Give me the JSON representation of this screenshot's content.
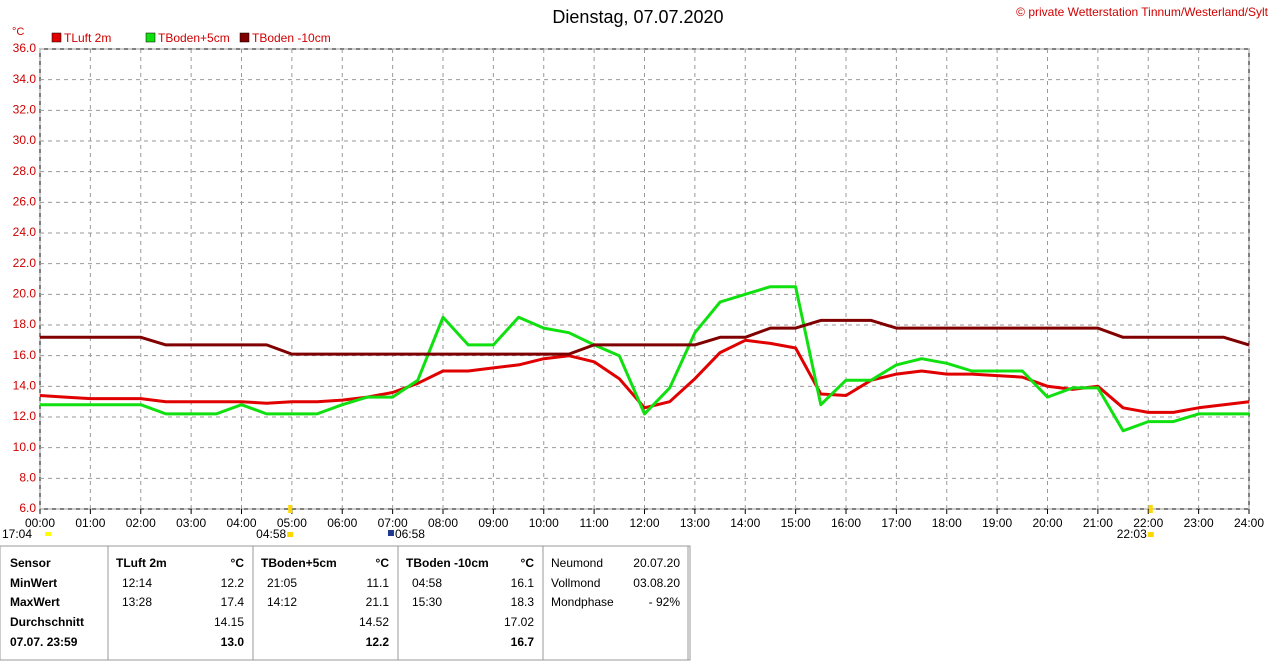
{
  "chart_data": {
    "type": "line",
    "title": "Dienstag, 07.07.2020",
    "copyright": "© private Wetterstation Tinnum/Westerland/Sylt",
    "y_unit": "°C",
    "grid": true,
    "x": [
      0,
      0.5,
      1,
      1.5,
      2,
      2.5,
      3,
      3.5,
      4,
      4.5,
      5,
      5.5,
      6,
      6.5,
      7,
      7.5,
      8,
      8.5,
      9,
      9.5,
      10,
      10.5,
      11,
      11.5,
      12,
      12.5,
      13,
      13.5,
      14,
      14.5,
      15,
      15.5,
      16,
      16.5,
      17,
      17.5,
      18,
      18.5,
      19,
      19.5,
      20,
      20.5,
      21,
      21.5,
      22,
      22.5,
      23,
      23.5,
      24
    ],
    "xlim": [
      0,
      24
    ],
    "xticks": [
      {
        "value": 0,
        "label": "00:00"
      },
      {
        "value": 1,
        "label": "01:00"
      },
      {
        "value": 2,
        "label": "02:00"
      },
      {
        "value": 3,
        "label": "03:00"
      },
      {
        "value": 4,
        "label": "04:00"
      },
      {
        "value": 5,
        "label": "05:00"
      },
      {
        "value": 6,
        "label": "06:00"
      },
      {
        "value": 7,
        "label": "07:00"
      },
      {
        "value": 8,
        "label": "08:00"
      },
      {
        "value": 9,
        "label": "09:00"
      },
      {
        "value": 10,
        "label": "10:00"
      },
      {
        "value": 11,
        "label": "11:00"
      },
      {
        "value": 12,
        "label": "12:00"
      },
      {
        "value": 13,
        "label": "13:00"
      },
      {
        "value": 14,
        "label": "14:00"
      },
      {
        "value": 15,
        "label": "15:00"
      },
      {
        "value": 16,
        "label": "16:00"
      },
      {
        "value": 17,
        "label": "17:00"
      },
      {
        "value": 18,
        "label": "18:00"
      },
      {
        "value": 19,
        "label": "19:00"
      },
      {
        "value": 20,
        "label": "20:00"
      },
      {
        "value": 21,
        "label": "21:00"
      },
      {
        "value": 22,
        "label": "22:00"
      },
      {
        "value": 23,
        "label": "23:00"
      },
      {
        "value": 24,
        "label": "24:00"
      }
    ],
    "ylim": [
      6,
      36
    ],
    "yticks": [
      {
        "value": 6,
        "label": "6.0"
      },
      {
        "value": 8,
        "label": "8.0"
      },
      {
        "value": 10,
        "label": "10.0"
      },
      {
        "value": 12,
        "label": "12.0"
      },
      {
        "value": 14,
        "label": "14.0"
      },
      {
        "value": 16,
        "label": "16.0"
      },
      {
        "value": 18,
        "label": "18.0"
      },
      {
        "value": 20,
        "label": "20.0"
      },
      {
        "value": 22,
        "label": "22.0"
      },
      {
        "value": 24,
        "label": "24.0"
      },
      {
        "value": 26,
        "label": "26.0"
      },
      {
        "value": 28,
        "label": "28.0"
      },
      {
        "value": 30,
        "label": "30.0"
      },
      {
        "value": 32,
        "label": "32.0"
      },
      {
        "value": 34,
        "label": "34.0"
      },
      {
        "value": 36,
        "label": "36.0"
      }
    ],
    "sun_markers": [
      {
        "value": 4.967,
        "label": "04:58"
      },
      {
        "value": 22.05,
        "label": "22:03"
      }
    ],
    "moon_markers": [
      {
        "value": 6.967,
        "label": "06:58"
      }
    ],
    "left_marker": "17:04",
    "series": [
      {
        "name": "TLuft 2m",
        "color": "#e00000",
        "values": [
          13.4,
          13.3,
          13.2,
          13.2,
          13.2,
          13.0,
          13.0,
          13.0,
          13.0,
          12.9,
          13.0,
          13.0,
          13.1,
          13.3,
          13.6,
          14.2,
          15.0,
          15.0,
          15.2,
          15.4,
          15.8,
          16.0,
          15.6,
          14.5,
          12.6,
          13.0,
          14.5,
          16.2,
          17.0,
          16.8,
          16.5,
          13.5,
          13.4,
          14.4,
          14.8,
          15.0,
          14.8,
          14.8,
          14.7,
          14.6,
          14.0,
          13.8,
          14.0,
          12.6,
          12.3,
          12.3,
          12.6,
          12.8,
          13.0
        ]
      },
      {
        "name": "TBoden+5cm",
        "color": "#10e010",
        "values": [
          12.8,
          12.8,
          12.8,
          12.8,
          12.8,
          12.2,
          12.2,
          12.2,
          12.8,
          12.2,
          12.2,
          12.2,
          12.8,
          13.3,
          13.3,
          14.4,
          18.5,
          16.7,
          16.7,
          18.5,
          17.8,
          17.5,
          16.7,
          16.0,
          12.2,
          13.9,
          17.5,
          19.5,
          20.0,
          20.5,
          20.5,
          12.8,
          14.4,
          14.4,
          15.4,
          15.8,
          15.5,
          15.0,
          15.0,
          15.0,
          13.3,
          13.9,
          13.9,
          11.1,
          11.7,
          11.7,
          12.2,
          12.2,
          12.2
        ]
      },
      {
        "name": "TBoden -10cm",
        "color": "#800000",
        "values": [
          17.2,
          17.2,
          17.2,
          17.2,
          17.2,
          16.7,
          16.7,
          16.7,
          16.7,
          16.7,
          16.1,
          16.1,
          16.1,
          16.1,
          16.1,
          16.1,
          16.1,
          16.1,
          16.1,
          16.1,
          16.1,
          16.1,
          16.7,
          16.7,
          16.7,
          16.7,
          16.7,
          17.2,
          17.2,
          17.8,
          17.8,
          18.3,
          18.3,
          18.3,
          17.8,
          17.8,
          17.8,
          17.8,
          17.8,
          17.8,
          17.8,
          17.8,
          17.8,
          17.2,
          17.2,
          17.2,
          17.2,
          17.2,
          16.7
        ]
      }
    ]
  },
  "stats": {
    "row_labels": [
      "Sensor",
      "MinWert",
      "MaxWert",
      "Durchschnitt",
      "07.07. 23:59"
    ],
    "sensors": [
      {
        "name": "TLuft 2m",
        "unit": "°C",
        "min_time": "12:14",
        "min": "12.2",
        "max_time": "13:28",
        "max": "17.4",
        "avg": "14.15",
        "current": "13.0"
      },
      {
        "name": "TBoden+5cm",
        "unit": "°C",
        "min_time": "21:05",
        "min": "11.1",
        "max_time": "14:12",
        "max": "21.1",
        "avg": "14.52",
        "current": "12.2"
      },
      {
        "name": "TBoden -10cm",
        "unit": "°C",
        "min_time": "04:58",
        "min": "16.1",
        "max_time": "15:30",
        "max": "18.3",
        "avg": "17.02",
        "current": "16.7"
      }
    ],
    "moon": [
      [
        "Neumond",
        "20.07.20"
      ],
      [
        "Vollmond",
        "03.08.20"
      ],
      [
        "Mondphase",
        "- 92%"
      ]
    ]
  }
}
